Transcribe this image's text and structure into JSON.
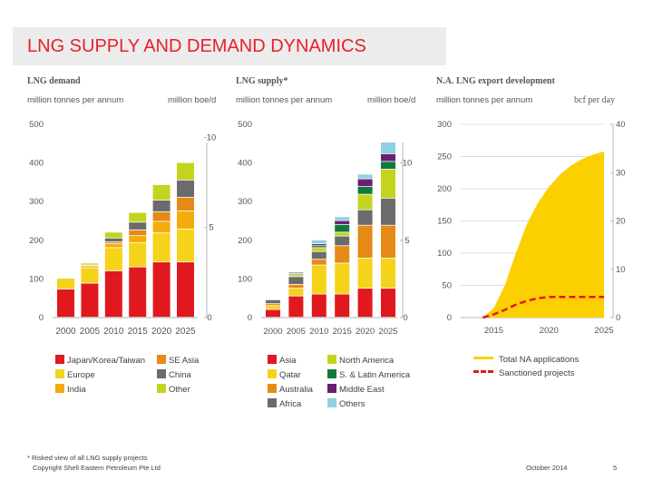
{
  "page": {
    "title": "LNG SUPPLY AND DEMAND DYNAMICS",
    "footnote": "* Risked view of all LNG supply projects",
    "copyright": "Copyright Shell Eastern Petroleum Pte Ltd",
    "date": "October 2014",
    "page_number": "5"
  },
  "colors": {
    "japan": "#e0191f",
    "europe": "#f5d31a",
    "india": "#f6ab0c",
    "se_asia": "#e58a17",
    "china": "#6b6b6b",
    "other": "#c3d41e",
    "asia": "#e0191f",
    "qatar": "#f5d31a",
    "australia": "#e58a17",
    "africa": "#6b6b6b",
    "north_america": "#c3d41e",
    "latam": "#0f7a3c",
    "middle_east": "#6a1f74",
    "others": "#8ed1e2",
    "na_total": "#fccf00",
    "na_sanctioned": "#e0191f"
  },
  "legend_demand": [
    {
      "label": "Japan/Korea/Taiwan",
      "color_key": "japan"
    },
    {
      "label": "SE Asia",
      "color_key": "se_asia"
    },
    {
      "label": "Europe",
      "color_key": "europe"
    },
    {
      "label": "China",
      "color_key": "china"
    },
    {
      "label": "India",
      "color_key": "india"
    },
    {
      "label": "Other",
      "color_key": "other"
    }
  ],
  "legend_supply": [
    {
      "label": "Asia",
      "color_key": "asia"
    },
    {
      "label": "North America",
      "color_key": "north_america"
    },
    {
      "label": "Qatar",
      "color_key": "qatar"
    },
    {
      "label": "S. & Latin America",
      "color_key": "latam"
    },
    {
      "label": "Australia",
      "color_key": "australia"
    },
    {
      "label": "Middle East",
      "color_key": "middle_east"
    },
    {
      "label": "Africa",
      "color_key": "africa"
    },
    {
      "label": "Others",
      "color_key": "others"
    }
  ],
  "legend_na": [
    {
      "label": "Total NA applications",
      "color_key": "na_total",
      "style": "solid"
    },
    {
      "label": "Sanctioned projects",
      "color_key": "na_sanctioned",
      "style": "dashed"
    }
  ],
  "chart_data": [
    {
      "type": "bar",
      "stacked": true,
      "title": "LNG demand",
      "ylabel": "million tonnes per annum",
      "y2label": "million boe/d",
      "ylim": [
        0,
        500
      ],
      "yticks": [
        "0",
        "100",
        "200",
        "300",
        "400",
        "500"
      ],
      "y2ticks": [
        "0",
        "5",
        "10"
      ],
      "y2ticks_values": [
        0,
        233,
        466
      ],
      "categories": [
        "2000",
        "2005",
        "2010",
        "2015",
        "2020",
        "2025"
      ],
      "series": [
        {
          "name": "Japan/Korea/Taiwan",
          "color_key": "japan",
          "values": [
            73,
            88,
            120,
            130,
            143,
            143
          ]
        },
        {
          "name": "Europe",
          "color_key": "europe",
          "values": [
            28,
            40,
            60,
            63,
            75,
            85
          ]
        },
        {
          "name": "India",
          "color_key": "india",
          "values": [
            0,
            5,
            10,
            18,
            30,
            47
          ]
        },
        {
          "name": "SE Asia",
          "color_key": "se_asia",
          "values": [
            0,
            0,
            5,
            15,
            25,
            35
          ]
        },
        {
          "name": "China",
          "color_key": "china",
          "values": [
            0,
            2,
            10,
            20,
            30,
            45
          ]
        },
        {
          "name": "Other",
          "color_key": "other",
          "values": [
            0,
            5,
            15,
            25,
            40,
            45
          ]
        }
      ]
    },
    {
      "type": "bar",
      "stacked": true,
      "title": "LNG supply*",
      "ylabel": "million tonnes per annum",
      "y2label": "million boe/d",
      "ylim": [
        0,
        500
      ],
      "yticks": [
        "0",
        "100",
        "200",
        "300",
        "400",
        "500"
      ],
      "y2ticks": [
        "0",
        "5",
        "10"
      ],
      "y2ticks_values": [
        0,
        200,
        400
      ],
      "categories": [
        "2000",
        "2005",
        "2010",
        "2015",
        "2020",
        "2025"
      ],
      "series": [
        {
          "name": "Asia",
          "color_key": "asia",
          "values": [
            20,
            55,
            60,
            60,
            75,
            75
          ]
        },
        {
          "name": "Qatar",
          "color_key": "qatar",
          "values": [
            10,
            20,
            75,
            80,
            78,
            78
          ]
        },
        {
          "name": "Australia",
          "color_key": "australia",
          "values": [
            5,
            10,
            15,
            45,
            85,
            85
          ]
        },
        {
          "name": "Africa",
          "color_key": "africa",
          "values": [
            10,
            20,
            20,
            25,
            40,
            70
          ]
        },
        {
          "name": "North America",
          "color_key": "north_america",
          "values": [
            0,
            5,
            10,
            10,
            40,
            75
          ]
        },
        {
          "name": "S. & Latin America",
          "color_key": "latam",
          "values": [
            0,
            3,
            5,
            20,
            20,
            20
          ]
        },
        {
          "name": "Middle East",
          "color_key": "middle_east",
          "values": [
            2,
            3,
            5,
            10,
            20,
            20
          ]
        },
        {
          "name": "Others",
          "color_key": "others",
          "values": [
            0,
            0,
            10,
            10,
            12,
            30
          ]
        }
      ]
    },
    {
      "type": "area",
      "title": "N.A. LNG export development",
      "ylabel": "million tonnes per annum",
      "y2label": "bcf per day",
      "xlim": [
        2012,
        2025
      ],
      "ylim": [
        0,
        300
      ],
      "yticks": [
        "0",
        "50",
        "100",
        "150",
        "200",
        "250",
        "300"
      ],
      "y2ticks": [
        "0",
        "10",
        "20",
        "30",
        "40"
      ],
      "y2ticks_values": [
        0,
        75,
        150,
        225,
        300
      ],
      "xticks": [
        "2015",
        "2020",
        "2025"
      ],
      "series": [
        {
          "name": "Total NA applications",
          "style": "area",
          "color_key": "na_total",
          "x": [
            2014,
            2015,
            2016,
            2017,
            2018,
            2019,
            2020,
            2021,
            2022,
            2023,
            2024,
            2025
          ],
          "y": [
            0,
            15,
            50,
            100,
            145,
            178,
            203,
            222,
            236,
            246,
            253,
            258
          ]
        },
        {
          "name": "Sanctioned projects",
          "style": "dashed",
          "color_key": "na_sanctioned",
          "x": [
            2014,
            2015,
            2016,
            2017,
            2018,
            2019,
            2020,
            2025
          ],
          "y": [
            0,
            5,
            12,
            20,
            26,
            30,
            32,
            32
          ]
        }
      ]
    }
  ]
}
